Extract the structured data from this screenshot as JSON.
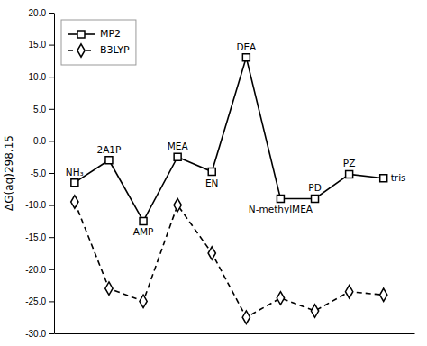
{
  "chart_data": {
    "type": "line",
    "y_label": "ΔG(aq)298.15",
    "x": [
      0,
      1,
      2,
      3,
      4,
      5,
      6,
      7,
      8,
      9
    ],
    "series": [
      {
        "name": "MP2",
        "color": "#000000",
        "marker": "square",
        "line_style": "solid",
        "values": [
          -6.5,
          -3.0,
          -12.5,
          -2.5,
          -4.8,
          13.0,
          -9.0,
          -9.0,
          -5.2,
          -5.8
        ]
      },
      {
        "name": "B3LYP",
        "color": "#000000",
        "marker": "diamond",
        "line_style": "dashed",
        "values": [
          -9.5,
          -23.0,
          -25.0,
          -10.0,
          -17.5,
          -27.5,
          -24.5,
          -26.5,
          -23.5,
          -24.0
        ]
      }
    ],
    "xlim": [
      -0.6,
      9.9
    ],
    "ylim": [
      -30.0,
      20.0
    ],
    "yticks": [
      {
        "value": -30.0,
        "label": "-30.0"
      },
      {
        "value": -25.0,
        "label": "-25.0"
      },
      {
        "value": -20.0,
        "label": "-20.0"
      },
      {
        "value": -15.0,
        "label": "-15.0"
      },
      {
        "value": -10.0,
        "label": "-10.0"
      },
      {
        "value": -5.0,
        "label": "-5.0"
      },
      {
        "value": 0.0,
        "label": "0.0"
      },
      {
        "value": 5.0,
        "label": "5.0"
      },
      {
        "value": 10.0,
        "label": "10.0"
      },
      {
        "value": 15.0,
        "label": "15.0"
      },
      {
        "value": 20.0,
        "label": "20.0"
      }
    ],
    "annotations": [
      {
        "text": "NH₃",
        "x": 0,
        "y": -6.5,
        "position": "above"
      },
      {
        "text": "2A1P",
        "x": 1,
        "y": -3.0,
        "position": "above"
      },
      {
        "text": "AMP",
        "x": 2,
        "y": -12.5,
        "position": "below"
      },
      {
        "text": "MEA",
        "x": 3,
        "y": -2.5,
        "position": "above"
      },
      {
        "text": "EN",
        "x": 4,
        "y": -4.8,
        "position": "below"
      },
      {
        "text": "DEA",
        "x": 5,
        "y": 13.0,
        "position": "above"
      },
      {
        "text": "N-methylMEA",
        "x": 6,
        "y": -9.0,
        "position": "below"
      },
      {
        "text": "PD",
        "x": 7,
        "y": -9.0,
        "position": "above"
      },
      {
        "text": "PZ",
        "x": 8,
        "y": -5.2,
        "position": "above"
      },
      {
        "text": "tris",
        "x": 9,
        "y": -5.8,
        "position": "right"
      }
    ],
    "legend": "upper left",
    "grid": false,
    "tick_labels": "y"
  }
}
